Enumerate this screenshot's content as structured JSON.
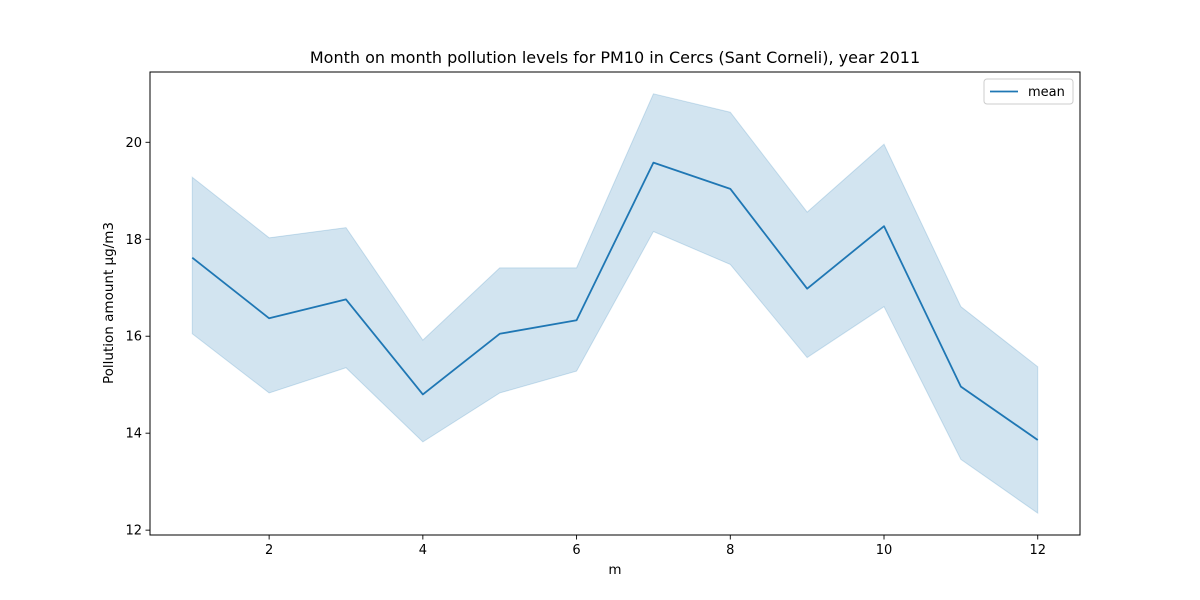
{
  "chart_data": {
    "type": "line",
    "title": "Month on month pollution levels for PM10 in Cercs (Sant Corneli), year 2011",
    "xlabel": "m",
    "ylabel": "Pollution amount µg/m3",
    "x": [
      1,
      2,
      3,
      4,
      5,
      6,
      7,
      8,
      9,
      10,
      11,
      12
    ],
    "xlim": [
      0.45,
      12.55
    ],
    "ylim": [
      11.9,
      21.45
    ],
    "xticks": [
      2,
      4,
      6,
      8,
      10,
      12
    ],
    "yticks": [
      12,
      14,
      16,
      18,
      20
    ],
    "grid": false,
    "legend_position": "top-right",
    "series": [
      {
        "name": "mean",
        "color": "#1f77b4",
        "values": [
          17.62,
          16.37,
          16.76,
          14.8,
          16.05,
          16.33,
          19.58,
          19.04,
          16.98,
          18.27,
          14.96,
          13.86
        ],
        "ci_lower": [
          16.05,
          14.83,
          15.35,
          13.82,
          14.83,
          15.28,
          18.16,
          17.48,
          15.56,
          16.61,
          13.46,
          12.35
        ],
        "ci_upper": [
          19.28,
          18.03,
          18.24,
          15.92,
          17.41,
          17.41,
          21.0,
          20.62,
          18.56,
          19.96,
          16.61,
          15.37
        ]
      }
    ]
  }
}
